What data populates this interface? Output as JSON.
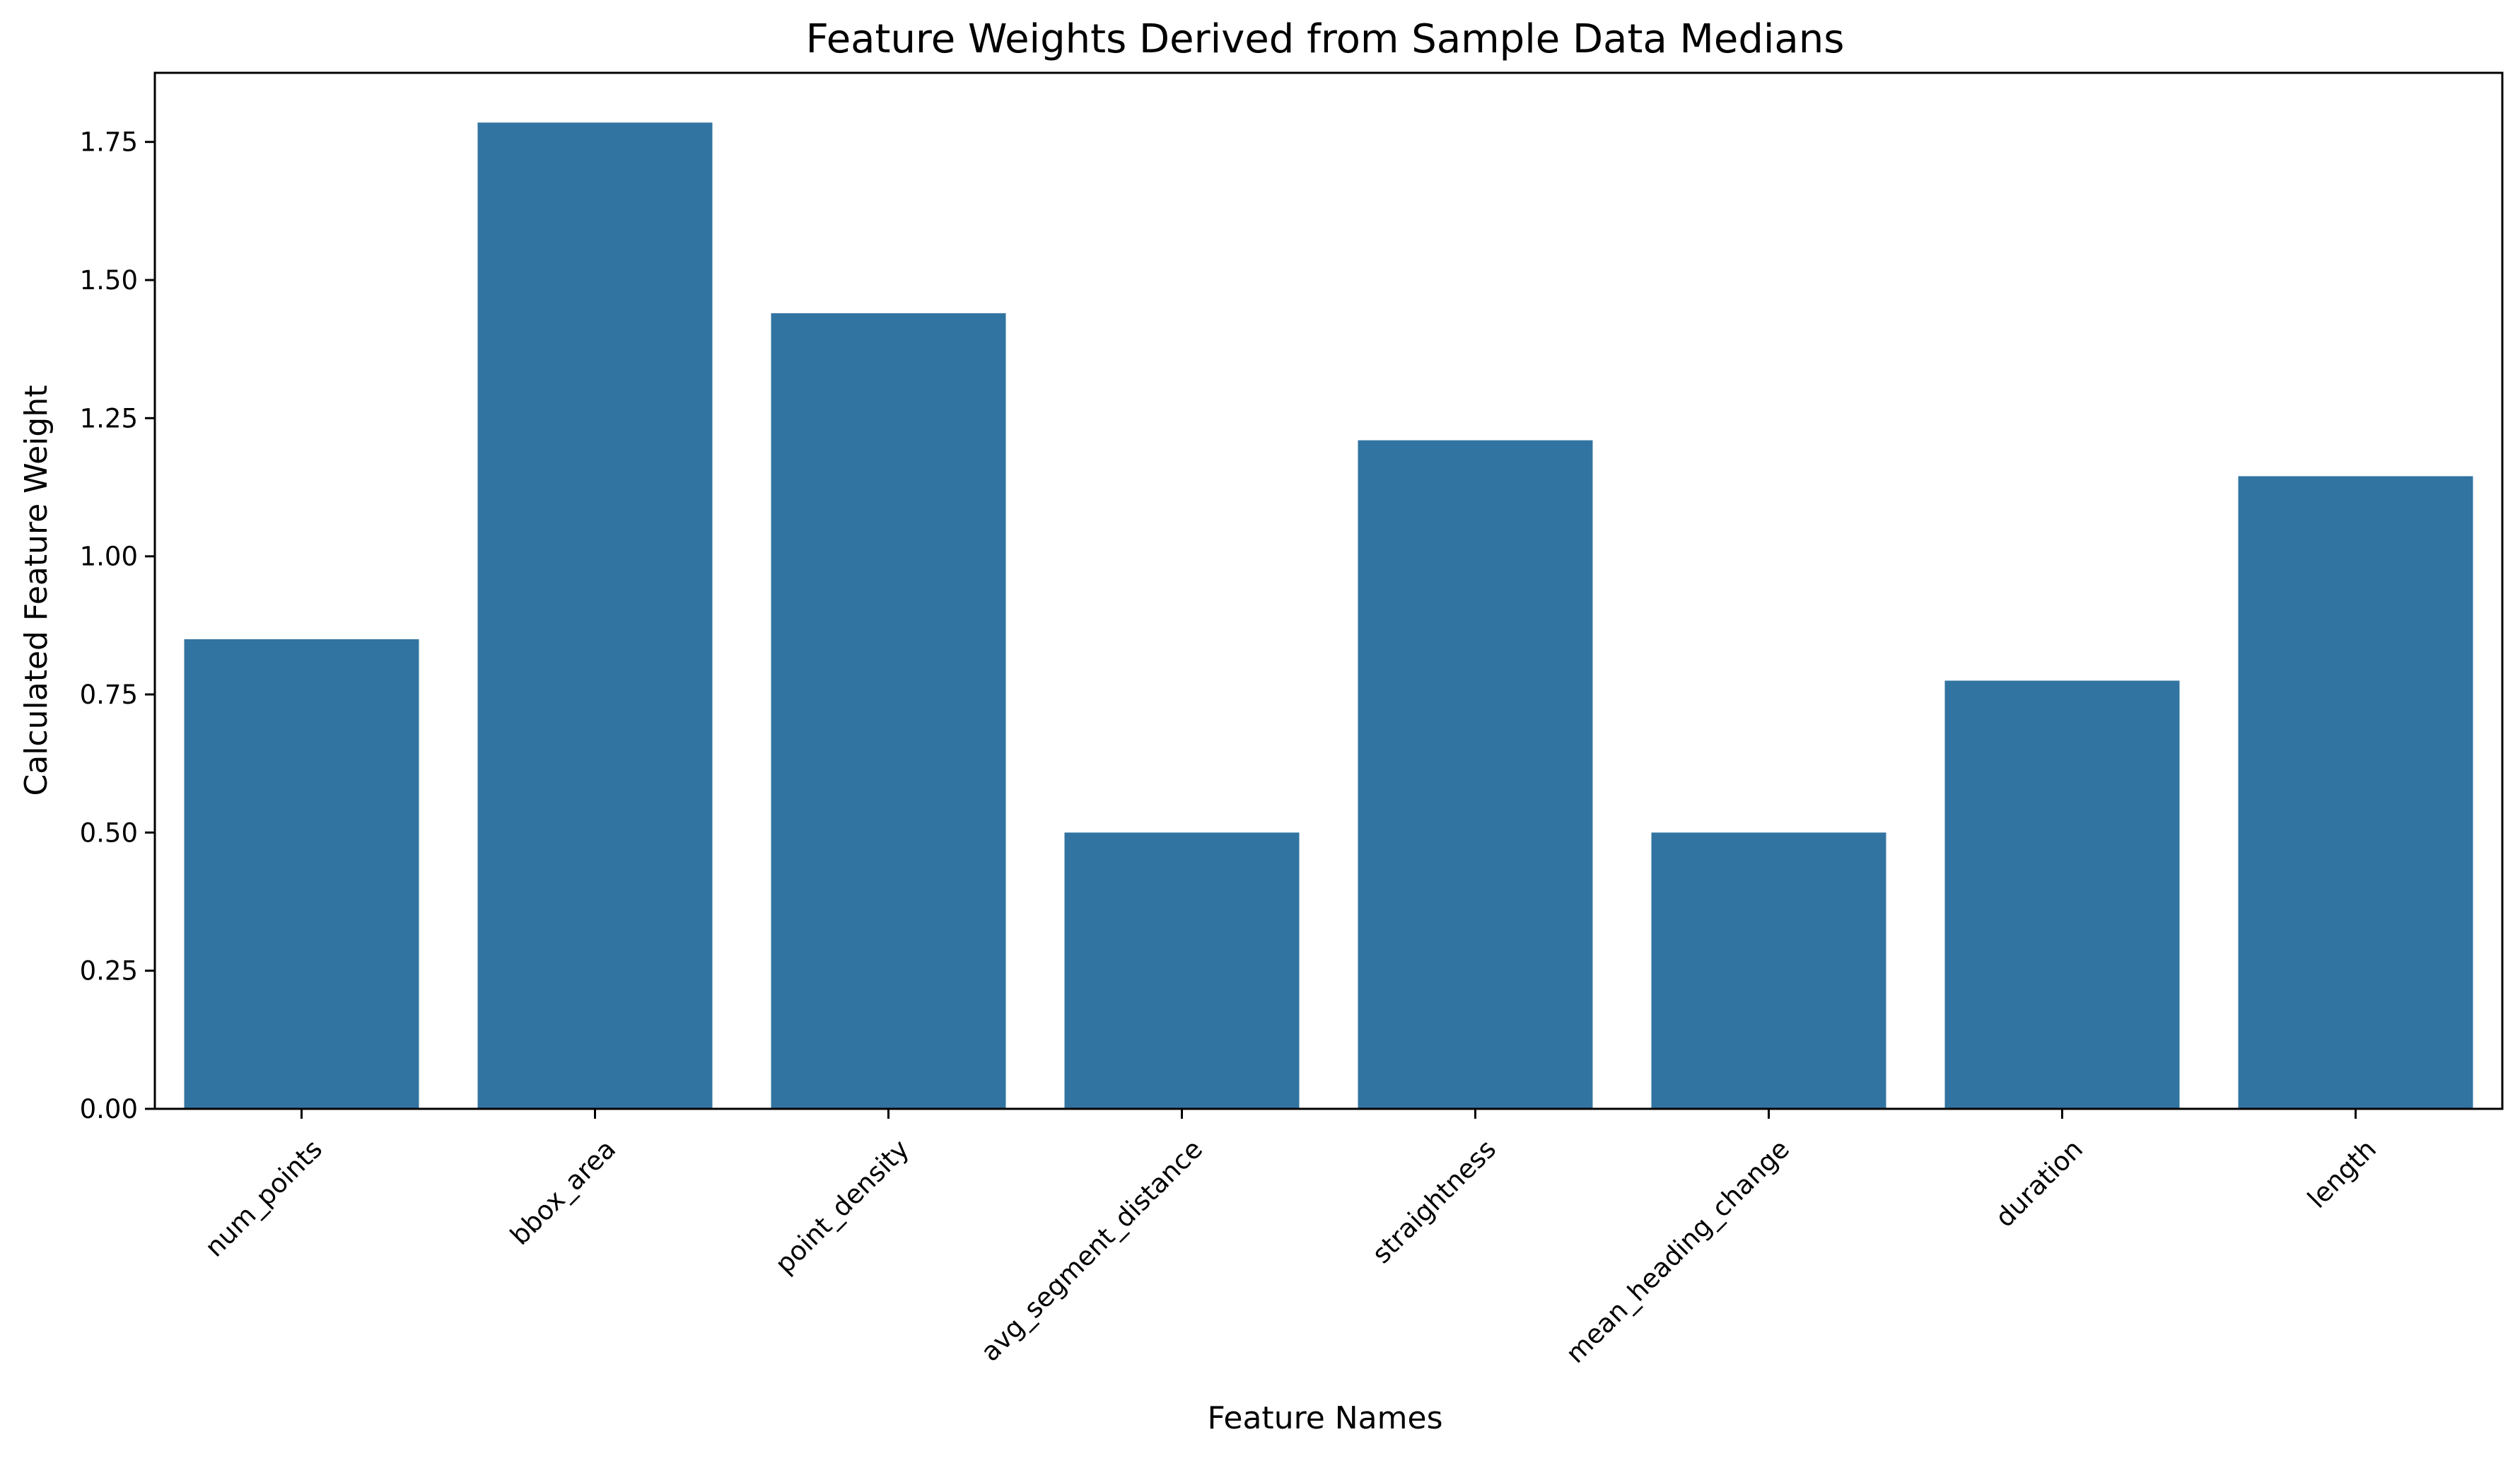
{
  "chart_data": {
    "type": "bar",
    "title": "Feature Weights Derived from Sample Data Medians",
    "xlabel": "Feature Names",
    "ylabel": "Calculated Feature Weight",
    "categories": [
      "num_points",
      "bbox_area",
      "point_density",
      "avg_segment_distance",
      "straightness",
      "mean_heading_change",
      "duration",
      "length"
    ],
    "values": [
      0.85,
      1.785,
      1.44,
      0.5,
      1.21,
      0.5,
      0.775,
      1.145
    ],
    "ylim": [
      0,
      1.875
    ],
    "yticks": [
      0.0,
      0.25,
      0.5,
      0.75,
      1.0,
      1.25,
      1.5,
      1.75
    ],
    "ytick_labels": [
      "0.00",
      "0.25",
      "0.50",
      "0.75",
      "1.00",
      "1.25",
      "1.50",
      "1.75"
    ],
    "grid": false,
    "legend": "none",
    "bar_color": "#3274a1"
  }
}
